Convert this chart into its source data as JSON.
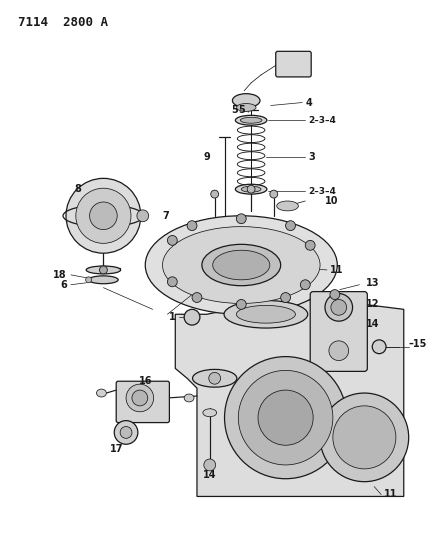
{
  "title": "7114  2800 A",
  "bg_color": "#f5f5f0",
  "line_color": "#1a1a1a",
  "label_color": "#111111",
  "figsize": [
    4.29,
    5.33
  ],
  "dpi": 100,
  "title_fontsize": 9,
  "label_fontsize": 6.5,
  "lw_main": 0.9,
  "lw_thin": 0.55,
  "lw_leader": 0.5
}
